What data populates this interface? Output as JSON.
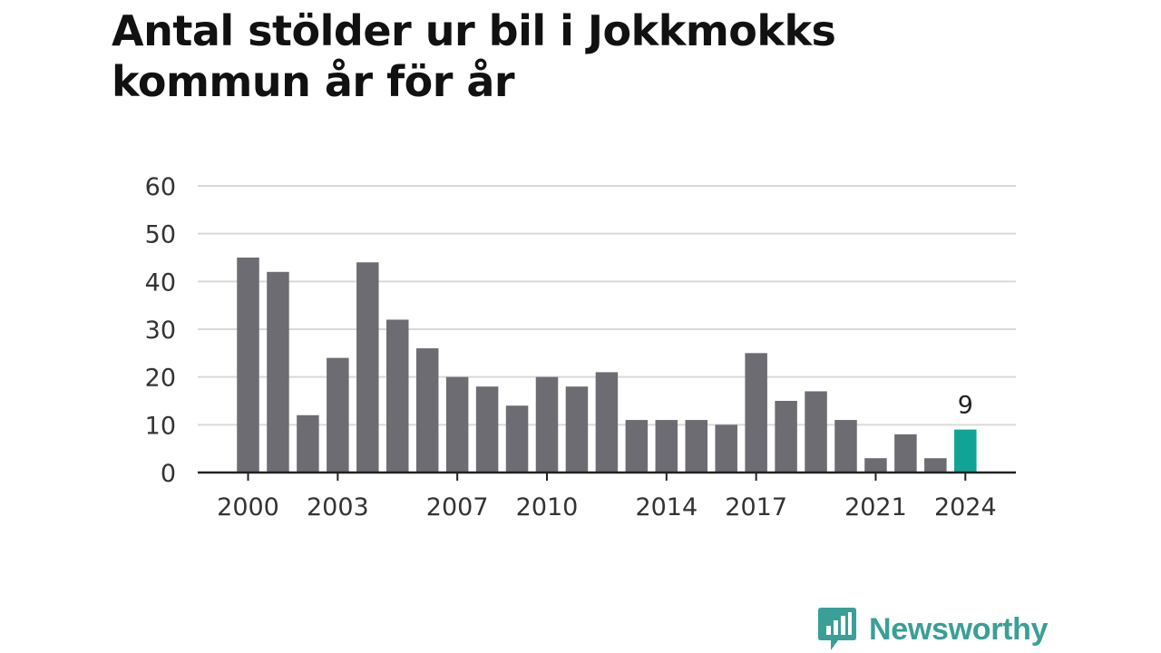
{
  "title": "Antal stölder ur bil i Jokkmokks kommun år för år",
  "brand": {
    "name": "Newsworthy",
    "color": "#3a9f96"
  },
  "chart_data": {
    "type": "bar",
    "title": "Antal stölder ur bil i Jokkmokks kommun år för år",
    "categories": [
      "2000",
      "2001",
      "2002",
      "2003",
      "2004",
      "2005",
      "2006",
      "2007",
      "2008",
      "2009",
      "2010",
      "2011",
      "2012",
      "2013",
      "2014",
      "2015",
      "2016",
      "2017",
      "2018",
      "2019",
      "2020",
      "2021",
      "2022",
      "2023",
      "2024"
    ],
    "values": [
      45,
      42,
      12,
      24,
      44,
      32,
      26,
      20,
      18,
      14,
      20,
      18,
      21,
      11,
      11,
      11,
      10,
      25,
      15,
      17,
      11,
      3,
      8,
      3,
      9
    ],
    "xticks": [
      "2000",
      "2003",
      "2007",
      "2010",
      "2014",
      "2017",
      "2021",
      "2024"
    ],
    "yticks": [
      0,
      10,
      20,
      30,
      40,
      50,
      60
    ],
    "ylim": [
      0,
      60
    ],
    "xlabel": "",
    "ylabel": "",
    "grid": true,
    "bar_color": "#6d6c72",
    "highlight": {
      "category": "2024",
      "color": "#12a397",
      "label": "9"
    }
  }
}
